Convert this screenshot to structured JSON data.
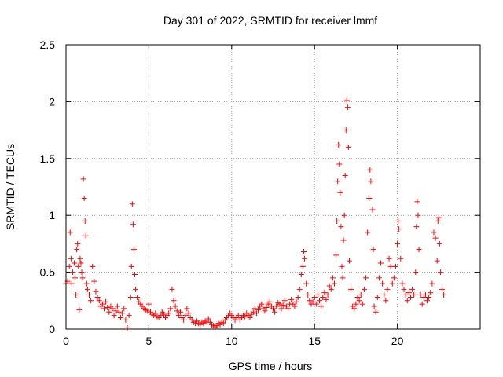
{
  "chart_data": {
    "type": "scatter",
    "title": "Day 301 of 2022, SRMTID for receiver lmmf",
    "xlabel": "GPS time / hours",
    "ylabel": "SRMTID / TECUs",
    "xlim": [
      0,
      25
    ],
    "ylim": [
      0,
      2.5
    ],
    "xticks": [
      0,
      5,
      10,
      15,
      20
    ],
    "xtick_labels": [
      "0",
      "5",
      "10",
      "15",
      "20"
    ],
    "yticks": [
      0,
      0.5,
      1,
      1.5,
      2,
      2.5
    ],
    "ytick_labels": [
      "0",
      "0.5",
      "1",
      "1.5",
      "2",
      "2.5"
    ],
    "grid": true,
    "marker": "+",
    "color": "#ff0000",
    "series": [
      {
        "name": "SRMTID",
        "points": [
          [
            0.0,
            0.4
          ],
          [
            0.1,
            0.42
          ],
          [
            0.2,
            0.55
          ],
          [
            0.25,
            0.85
          ],
          [
            0.3,
            0.62
          ],
          [
            0.35,
            0.4
          ],
          [
            0.4,
            0.5
          ],
          [
            0.5,
            0.58
          ],
          [
            0.55,
            0.45
          ],
          [
            0.6,
            0.3
          ],
          [
            0.65,
            0.7
          ],
          [
            0.7,
            0.75
          ],
          [
            0.75,
            0.55
          ],
          [
            0.8,
            0.17
          ],
          [
            0.85,
            0.62
          ],
          [
            0.9,
            0.58
          ],
          [
            0.95,
            0.5
          ],
          [
            1.0,
            0.45
          ],
          [
            1.05,
            1.32
          ],
          [
            1.1,
            1.15
          ],
          [
            1.15,
            0.95
          ],
          [
            1.2,
            0.82
          ],
          [
            1.25,
            0.4
          ],
          [
            1.3,
            0.35
          ],
          [
            1.4,
            0.3
          ],
          [
            1.5,
            0.25
          ],
          [
            1.6,
            0.55
          ],
          [
            1.7,
            0.42
          ],
          [
            1.8,
            0.33
          ],
          [
            1.9,
            0.28
          ],
          [
            2.0,
            0.25
          ],
          [
            2.1,
            0.2
          ],
          [
            2.2,
            0.22
          ],
          [
            2.3,
            0.18
          ],
          [
            2.4,
            0.24
          ],
          [
            2.5,
            0.19
          ],
          [
            2.6,
            0.15
          ],
          [
            2.7,
            0.2
          ],
          [
            2.8,
            0.18
          ],
          [
            2.9,
            0.12
          ],
          [
            3.0,
            0.16
          ],
          [
            3.1,
            0.2
          ],
          [
            3.2,
            0.15
          ],
          [
            3.3,
            0.1
          ],
          [
            3.4,
            0.14
          ],
          [
            3.5,
            0.18
          ],
          [
            3.6,
            0.08
          ],
          [
            3.7,
            0.01
          ],
          [
            3.8,
            0.12
          ],
          [
            3.9,
            0.28
          ],
          [
            3.95,
            0.55
          ],
          [
            4.0,
            1.1
          ],
          [
            4.05,
            0.92
          ],
          [
            4.1,
            0.7
          ],
          [
            4.15,
            0.48
          ],
          [
            4.2,
            0.35
          ],
          [
            4.3,
            0.28
          ],
          [
            4.4,
            0.24
          ],
          [
            4.5,
            0.22
          ],
          [
            4.6,
            0.2
          ],
          [
            4.7,
            0.18
          ],
          [
            4.8,
            0.17
          ],
          [
            4.9,
            0.16
          ],
          [
            5.0,
            0.22
          ],
          [
            5.1,
            0.15
          ],
          [
            5.2,
            0.13
          ],
          [
            5.3,
            0.12
          ],
          [
            5.4,
            0.14
          ],
          [
            5.5,
            0.11
          ],
          [
            5.6,
            0.1
          ],
          [
            5.7,
            0.12
          ],
          [
            5.8,
            0.15
          ],
          [
            5.9,
            0.13
          ],
          [
            6.0,
            0.1
          ],
          [
            6.1,
            0.12
          ],
          [
            6.2,
            0.14
          ],
          [
            6.3,
            0.18
          ],
          [
            6.4,
            0.35
          ],
          [
            6.5,
            0.25
          ],
          [
            6.6,
            0.2
          ],
          [
            6.7,
            0.16
          ],
          [
            6.8,
            0.12
          ],
          [
            6.9,
            0.15
          ],
          [
            7.0,
            0.1
          ],
          [
            7.1,
            0.08
          ],
          [
            7.2,
            0.12
          ],
          [
            7.3,
            0.18
          ],
          [
            7.4,
            0.14
          ],
          [
            7.5,
            0.1
          ],
          [
            7.6,
            0.08
          ],
          [
            7.7,
            0.06
          ],
          [
            7.8,
            0.05
          ],
          [
            7.9,
            0.07
          ],
          [
            8.0,
            0.05
          ],
          [
            8.1,
            0.04
          ],
          [
            8.2,
            0.06
          ],
          [
            8.3,
            0.05
          ],
          [
            8.4,
            0.07
          ],
          [
            8.5,
            0.06
          ],
          [
            8.6,
            0.09
          ],
          [
            8.7,
            0.06
          ],
          [
            8.8,
            0.04
          ],
          [
            8.9,
            0.03
          ],
          [
            9.0,
            0.02
          ],
          [
            9.1,
            0.03
          ],
          [
            9.2,
            0.05
          ],
          [
            9.3,
            0.04
          ],
          [
            9.4,
            0.06
          ],
          [
            9.5,
            0.05
          ],
          [
            9.6,
            0.08
          ],
          [
            9.7,
            0.1
          ],
          [
            9.8,
            0.12
          ],
          [
            9.9,
            0.14
          ],
          [
            10.0,
            0.12
          ],
          [
            10.1,
            0.1
          ],
          [
            10.2,
            0.08
          ],
          [
            10.3,
            0.1
          ],
          [
            10.4,
            0.12
          ],
          [
            10.5,
            0.08
          ],
          [
            10.6,
            0.1
          ],
          [
            10.7,
            0.12
          ],
          [
            10.8,
            0.11
          ],
          [
            10.9,
            0.14
          ],
          [
            11.0,
            0.12
          ],
          [
            11.1,
            0.1
          ],
          [
            11.2,
            0.13
          ],
          [
            11.3,
            0.15
          ],
          [
            11.4,
            0.18
          ],
          [
            11.5,
            0.14
          ],
          [
            11.6,
            0.17
          ],
          [
            11.7,
            0.2
          ],
          [
            11.8,
            0.22
          ],
          [
            11.9,
            0.18
          ],
          [
            12.0,
            0.16
          ],
          [
            12.1,
            0.19
          ],
          [
            12.2,
            0.22
          ],
          [
            12.3,
            0.24
          ],
          [
            12.4,
            0.2
          ],
          [
            12.5,
            0.18
          ],
          [
            12.6,
            0.15
          ],
          [
            12.7,
            0.2
          ],
          [
            12.8,
            0.23
          ],
          [
            12.9,
            0.22
          ],
          [
            13.0,
            0.18
          ],
          [
            13.1,
            0.21
          ],
          [
            13.2,
            0.25
          ],
          [
            13.3,
            0.2
          ],
          [
            13.4,
            0.18
          ],
          [
            13.5,
            0.22
          ],
          [
            13.6,
            0.26
          ],
          [
            13.7,
            0.22
          ],
          [
            13.8,
            0.2
          ],
          [
            13.9,
            0.24
          ],
          [
            14.0,
            0.28
          ],
          [
            14.1,
            0.35
          ],
          [
            14.2,
            0.48
          ],
          [
            14.3,
            0.55
          ],
          [
            14.35,
            0.68
          ],
          [
            14.4,
            0.62
          ],
          [
            14.5,
            0.4
          ],
          [
            14.6,
            0.3
          ],
          [
            14.7,
            0.25
          ],
          [
            14.8,
            0.22
          ],
          [
            14.9,
            0.24
          ],
          [
            15.0,
            0.28
          ],
          [
            15.1,
            0.22
          ],
          [
            15.2,
            0.3
          ],
          [
            15.3,
            0.25
          ],
          [
            15.4,
            0.2
          ],
          [
            15.5,
            0.28
          ],
          [
            15.6,
            0.32
          ],
          [
            15.7,
            0.26
          ],
          [
            15.8,
            0.3
          ],
          [
            15.9,
            0.38
          ],
          [
            16.0,
            0.35
          ],
          [
            16.1,
            0.45
          ],
          [
            16.2,
            0.4
          ],
          [
            16.3,
            0.65
          ],
          [
            16.35,
            0.95
          ],
          [
            16.4,
            1.3
          ],
          [
            16.45,
            1.62
          ],
          [
            16.5,
            1.45
          ],
          [
            16.55,
            1.2
          ],
          [
            16.6,
            0.9
          ],
          [
            16.65,
            0.55
          ],
          [
            16.7,
            0.45
          ],
          [
            16.75,
            0.78
          ],
          [
            16.8,
            1.0
          ],
          [
            16.85,
            1.35
          ],
          [
            16.9,
            1.75
          ],
          [
            16.95,
            2.01
          ],
          [
            17.0,
            1.95
          ],
          [
            17.05,
            1.6
          ],
          [
            17.1,
            0.6
          ],
          [
            17.2,
            0.35
          ],
          [
            17.3,
            0.2
          ],
          [
            17.4,
            0.18
          ],
          [
            17.5,
            0.22
          ],
          [
            17.6,
            0.28
          ],
          [
            17.7,
            0.25
          ],
          [
            17.8,
            0.3
          ],
          [
            17.9,
            0.22
          ],
          [
            18.0,
            0.35
          ],
          [
            18.1,
            0.45
          ],
          [
            18.2,
            0.85
          ],
          [
            18.3,
            1.15
          ],
          [
            18.35,
            1.4
          ],
          [
            18.4,
            1.3
          ],
          [
            18.5,
            1.05
          ],
          [
            18.55,
            0.7
          ],
          [
            18.6,
            0.2
          ],
          [
            18.7,
            0.15
          ],
          [
            18.8,
            0.28
          ],
          [
            18.9,
            0.45
          ],
          [
            19.0,
            0.58
          ],
          [
            19.1,
            0.4
          ],
          [
            19.2,
            0.3
          ],
          [
            19.3,
            0.25
          ],
          [
            19.4,
            0.35
          ],
          [
            19.5,
            0.62
          ],
          [
            19.6,
            0.55
          ],
          [
            19.7,
            0.4
          ],
          [
            19.8,
            0.45
          ],
          [
            19.9,
            0.55
          ],
          [
            20.0,
            0.75
          ],
          [
            20.05,
            0.95
          ],
          [
            20.1,
            0.88
          ],
          [
            20.2,
            0.62
          ],
          [
            20.3,
            0.4
          ],
          [
            20.4,
            0.35
          ],
          [
            20.5,
            0.3
          ],
          [
            20.6,
            0.25
          ],
          [
            20.7,
            0.32
          ],
          [
            20.8,
            0.28
          ],
          [
            20.9,
            0.35
          ],
          [
            21.0,
            0.3
          ],
          [
            21.1,
            0.5
          ],
          [
            21.15,
            0.9
          ],
          [
            21.2,
            1.12
          ],
          [
            21.25,
            1.0
          ],
          [
            21.3,
            0.7
          ],
          [
            21.4,
            0.3
          ],
          [
            21.5,
            0.22
          ],
          [
            21.6,
            0.28
          ],
          [
            21.7,
            0.3
          ],
          [
            21.8,
            0.25
          ],
          [
            21.9,
            0.28
          ],
          [
            22.0,
            0.32
          ],
          [
            22.1,
            0.4
          ],
          [
            22.2,
            0.85
          ],
          [
            22.3,
            0.8
          ],
          [
            22.4,
            0.6
          ],
          [
            22.45,
            0.95
          ],
          [
            22.5,
            0.98
          ],
          [
            22.55,
            0.75
          ],
          [
            22.6,
            0.5
          ],
          [
            22.7,
            0.35
          ],
          [
            22.8,
            0.3
          ]
        ]
      }
    ]
  }
}
